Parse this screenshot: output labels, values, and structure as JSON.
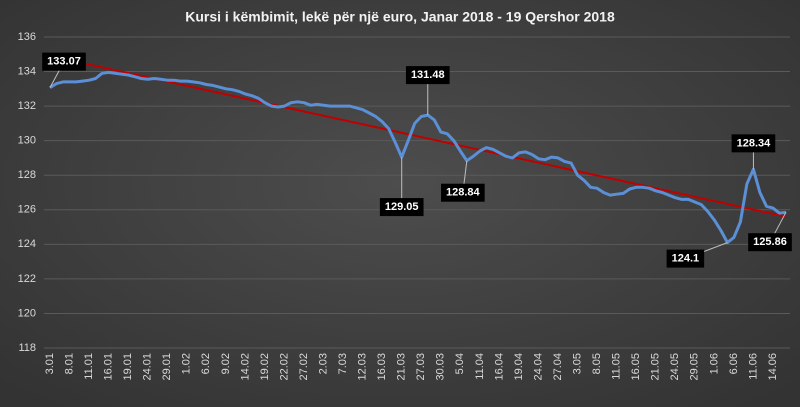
{
  "chart_data": {
    "type": "line",
    "title": "Kursi i këmbimit, lekë për një euro, Janar 2018 - 19 Qershor 2018",
    "categories": [
      "3.01",
      null,
      null,
      "8.01",
      null,
      null,
      "11.01",
      null,
      null,
      "16.01",
      null,
      null,
      "19.01",
      null,
      null,
      "24.01",
      null,
      null,
      "29.01",
      null,
      null,
      "1.02",
      null,
      null,
      "6.02",
      null,
      null,
      "9.02",
      null,
      null,
      "14.02",
      null,
      null,
      "19.02",
      null,
      null,
      "22.02",
      null,
      null,
      "27.02",
      null,
      null,
      "2.03",
      null,
      null,
      "7.03",
      null,
      null,
      "12.03",
      null,
      null,
      "16.03",
      null,
      null,
      "21.03",
      null,
      null,
      "27.03",
      null,
      null,
      "30.03",
      null,
      null,
      "5.04",
      null,
      null,
      "11.04",
      null,
      null,
      "16.04",
      null,
      null,
      "19.04",
      null,
      null,
      "24.04",
      null,
      null,
      "27.04",
      null,
      null,
      "3.05",
      null,
      null,
      "8.05",
      null,
      null,
      "11.05",
      null,
      null,
      "16.05",
      null,
      null,
      "21.05",
      null,
      null,
      "24.05",
      null,
      null,
      "29.05",
      null,
      null,
      "1.06",
      null,
      null,
      "6.06",
      null,
      null,
      "11.06",
      null,
      null,
      "14.06",
      null,
      null
    ],
    "series": [
      {
        "name": "EUR",
        "color": "#5b8fd6",
        "values": [
          133.07,
          133.3,
          133.4,
          133.4,
          133.4,
          133.45,
          133.5,
          133.6,
          133.9,
          133.95,
          133.9,
          133.85,
          133.8,
          133.7,
          133.6,
          133.55,
          133.6,
          133.55,
          133.5,
          133.5,
          133.45,
          133.45,
          133.4,
          133.35,
          133.25,
          133.2,
          133.1,
          133.0,
          132.95,
          132.85,
          132.7,
          132.6,
          132.45,
          132.2,
          132.0,
          131.95,
          132.0,
          132.2,
          132.25,
          132.2,
          132.05,
          132.1,
          132.05,
          132.0,
          132.0,
          132.0,
          132.0,
          131.9,
          131.8,
          131.6,
          131.4,
          131.1,
          130.7,
          129.9,
          129.05,
          130.0,
          131.0,
          131.4,
          131.48,
          131.2,
          130.5,
          130.4,
          130.0,
          129.4,
          128.84,
          129.1,
          129.4,
          129.6,
          129.5,
          129.3,
          129.1,
          129.0,
          129.3,
          129.35,
          129.2,
          128.95,
          128.9,
          129.05,
          129.0,
          128.8,
          128.7,
          128.0,
          127.7,
          127.3,
          127.25,
          127.0,
          126.85,
          126.9,
          126.95,
          127.2,
          127.3,
          127.3,
          127.25,
          127.1,
          127.0,
          126.85,
          126.7,
          126.6,
          126.6,
          126.45,
          126.3,
          125.9,
          125.4,
          124.8,
          124.1,
          124.4,
          125.3,
          127.5,
          128.34,
          127.0,
          126.2,
          126.1,
          125.8,
          125.86
        ]
      }
    ],
    "labeled_points": [
      0,
      54,
      58,
      64,
      104,
      108,
      113
    ],
    "trendline": {
      "color": "#c00000",
      "start": 134.9,
      "end": 125.6
    },
    "ylim": [
      118,
      136
    ],
    "yticks": [
      118,
      120,
      122,
      124,
      126,
      128,
      130,
      132,
      134,
      136
    ],
    "grid": true
  }
}
